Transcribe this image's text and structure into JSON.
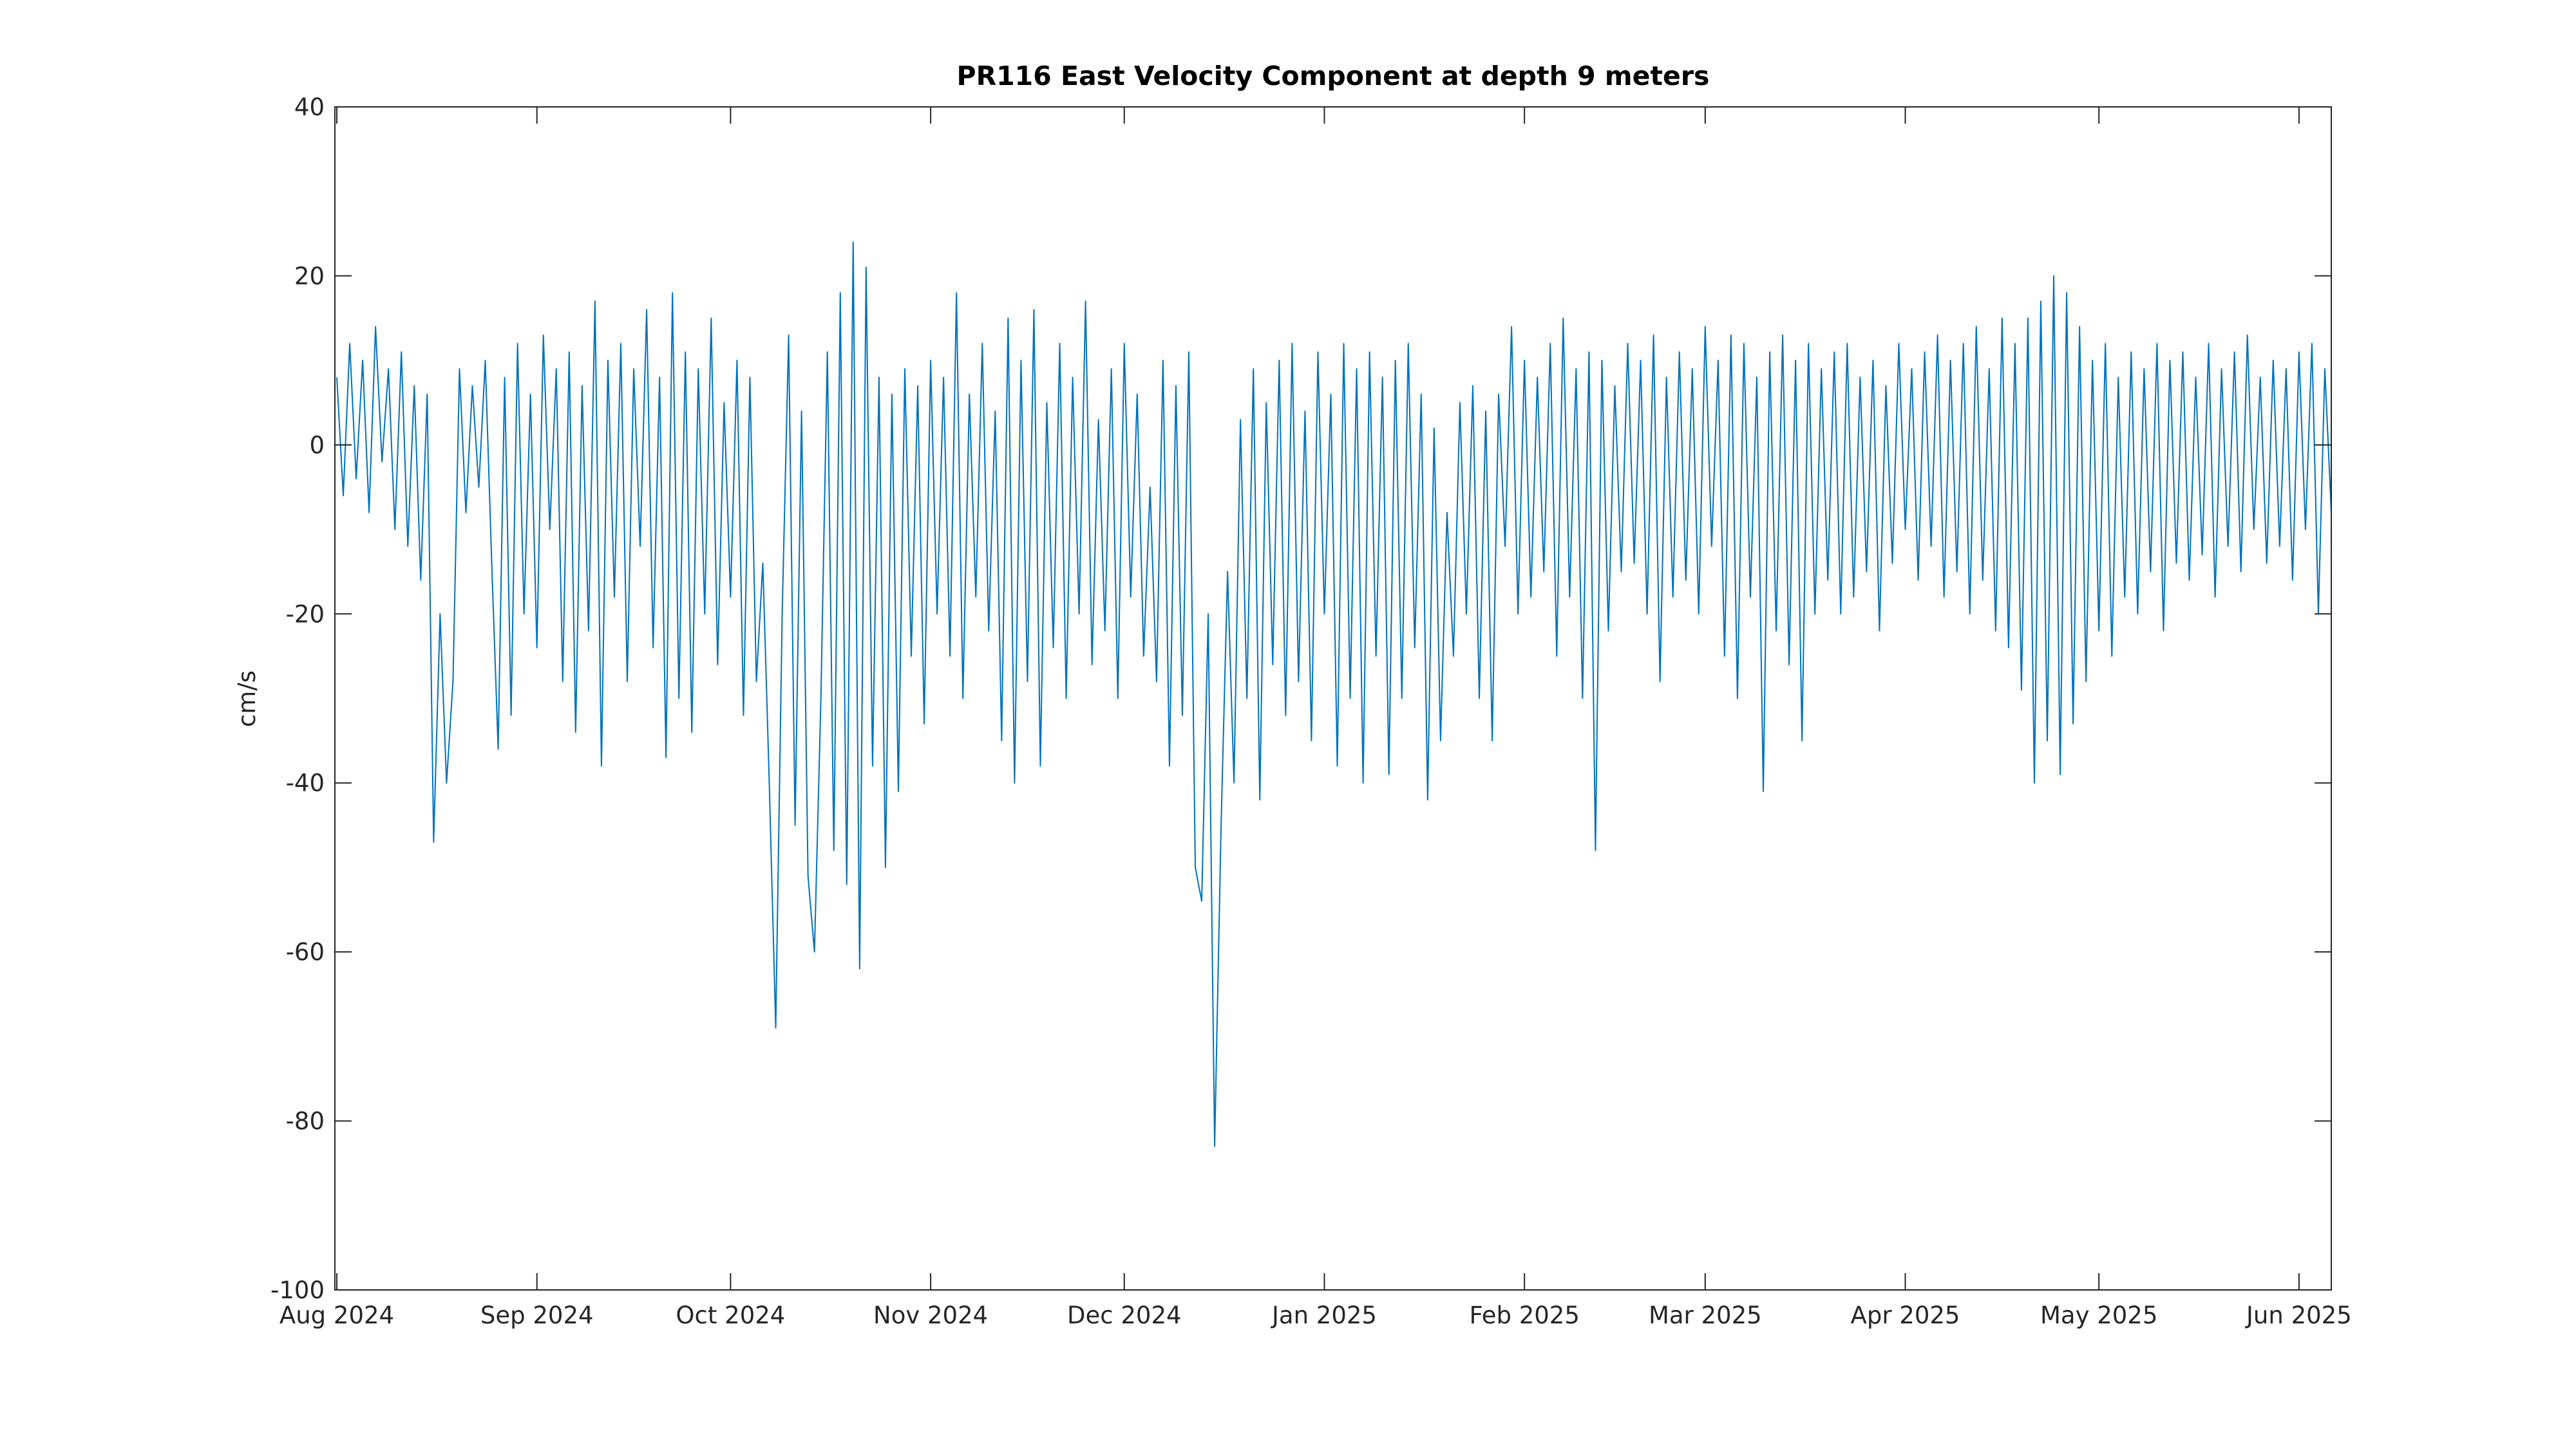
{
  "chart_data": {
    "type": "line",
    "title": "PR116 East Velocity Component at depth 9 meters",
    "y_label": "cm/s",
    "color": "#0072BD",
    "xlim": [
      -0.3,
      309
    ],
    "xticks": [
      {
        "value": 0,
        "label": "Aug 2024"
      },
      {
        "value": 31,
        "label": "Sep 2024"
      },
      {
        "value": 61,
        "label": "Oct 2024"
      },
      {
        "value": 92,
        "label": "Nov 2024"
      },
      {
        "value": 122,
        "label": "Dec 2024"
      },
      {
        "value": 153,
        "label": "Jan 2025"
      },
      {
        "value": 184,
        "label": "Feb 2025"
      },
      {
        "value": 212,
        "label": "Mar 2025"
      },
      {
        "value": 243,
        "label": "Apr 2025"
      },
      {
        "value": 273,
        "label": "May 2025"
      },
      {
        "value": 304,
        "label": "Jun 2025"
      }
    ],
    "ylim": [
      -100,
      40
    ],
    "yticks": [
      -100,
      -80,
      -60,
      -40,
      -20,
      0,
      20,
      40
    ],
    "grid": false,
    "x": [
      0,
      1,
      2,
      3,
      4,
      5,
      6,
      7,
      8,
      9,
      10,
      11,
      12,
      13,
      14,
      15,
      16,
      17,
      18,
      19,
      20,
      21,
      22,
      23,
      24,
      25,
      26,
      27,
      28,
      29,
      30,
      31,
      32,
      33,
      34,
      35,
      36,
      37,
      38,
      39,
      40,
      41,
      42,
      43,
      44,
      45,
      46,
      47,
      48,
      49,
      50,
      51,
      52,
      53,
      54,
      55,
      56,
      57,
      58,
      59,
      60,
      61,
      62,
      63,
      64,
      65,
      66,
      67,
      68,
      69,
      70,
      71,
      72,
      73,
      74,
      75,
      76,
      77,
      78,
      79,
      80,
      81,
      82,
      83,
      84,
      85,
      86,
      87,
      88,
      89,
      90,
      91,
      92,
      93,
      94,
      95,
      96,
      97,
      98,
      99,
      100,
      101,
      102,
      103,
      104,
      105,
      106,
      107,
      108,
      109,
      110,
      111,
      112,
      113,
      114,
      115,
      116,
      117,
      118,
      119,
      120,
      121,
      122,
      123,
      124,
      125,
      126,
      127,
      128,
      129,
      130,
      131,
      132,
      133,
      134,
      135,
      136,
      137,
      138,
      139,
      140,
      141,
      142,
      143,
      144,
      145,
      146,
      147,
      148,
      149,
      150,
      151,
      152,
      153,
      154,
      155,
      156,
      157,
      158,
      159,
      160,
      161,
      162,
      163,
      164,
      165,
      166,
      167,
      168,
      169,
      170,
      171,
      172,
      173,
      174,
      175,
      176,
      177,
      178,
      179,
      180,
      181,
      182,
      183,
      184,
      185,
      186,
      187,
      188,
      189,
      190,
      191,
      192,
      193,
      194,
      195,
      196,
      197,
      198,
      199,
      200,
      201,
      202,
      203,
      204,
      205,
      206,
      207,
      208,
      209,
      210,
      211,
      212,
      213,
      214,
      215,
      216,
      217,
      218,
      219,
      220,
      221,
      222,
      223,
      224,
      225,
      226,
      227,
      228,
      229,
      230,
      231,
      232,
      233,
      234,
      235,
      236,
      237,
      238,
      239,
      240,
      241,
      242,
      243,
      244,
      245,
      246,
      247,
      248,
      249,
      250,
      251,
      252,
      253,
      254,
      255,
      256,
      257,
      258,
      259,
      260,
      261,
      262,
      263,
      264,
      265,
      266,
      267,
      268,
      269,
      270,
      271,
      272,
      273,
      274,
      275,
      276,
      277,
      278,
      279,
      280,
      281,
      282,
      283,
      284,
      285,
      286,
      287,
      288,
      289,
      290,
      291,
      292,
      293,
      294,
      295,
      296,
      297,
      298,
      299,
      300,
      301,
      302,
      303,
      304,
      305,
      306,
      307,
      308,
      309
    ],
    "values": [
      8,
      -6,
      12,
      -4,
      10,
      -8,
      14,
      -2,
      9,
      -10,
      11,
      -12,
      7,
      -16,
      6,
      -47,
      -20,
      -40,
      -28,
      9,
      -8,
      7,
      -5,
      10,
      -14,
      -36,
      8,
      -32,
      12,
      -20,
      6,
      -24,
      13,
      -10,
      9,
      -28,
      11,
      -34,
      7,
      -22,
      17,
      -38,
      10,
      -18,
      12,
      -28,
      9,
      -12,
      16,
      -24,
      8,
      -37,
      18,
      -30,
      11,
      -34,
      9,
      -20,
      15,
      -26,
      5,
      -18,
      10,
      -32,
      8,
      -28,
      -14,
      -40,
      -69,
      -20,
      13,
      -45,
      4,
      -51,
      -60,
      -30,
      11,
      -48,
      18,
      -52,
      24,
      -62,
      21,
      -38,
      8,
      -50,
      6,
      -41,
      9,
      -25,
      7,
      -33,
      10,
      -20,
      8,
      -25,
      18,
      -30,
      6,
      -18,
      12,
      -22,
      4,
      -35,
      15,
      -40,
      10,
      -28,
      16,
      -38,
      5,
      -24,
      12,
      -30,
      8,
      -20,
      17,
      -26,
      3,
      -22,
      9,
      -30,
      12,
      -18,
      6,
      -25,
      -5,
      -28,
      10,
      -38,
      7,
      -32,
      11,
      -50,
      -54,
      -20,
      -83,
      -45,
      -15,
      -40,
      3,
      -30,
      9,
      -42,
      5,
      -26,
      10,
      -32,
      12,
      -28,
      4,
      -35,
      11,
      -20,
      6,
      -38,
      12,
      -30,
      9,
      -40,
      11,
      -25,
      8,
      -39,
      10,
      -30,
      12,
      -24,
      6,
      -42,
      2,
      -35,
      -8,
      -25,
      5,
      -20,
      7,
      -30,
      4,
      -35,
      6,
      -12,
      14,
      -20,
      10,
      -18,
      8,
      -15,
      12,
      -25,
      15,
      -18,
      9,
      -30,
      11,
      -48,
      10,
      -22,
      7,
      -15,
      12,
      -14,
      10,
      -20,
      13,
      -28,
      8,
      -18,
      11,
      -16,
      9,
      -20,
      14,
      -12,
      10,
      -25,
      13,
      -30,
      12,
      -18,
      8,
      -41,
      11,
      -22,
      13,
      -26,
      10,
      -35,
      12,
      -20,
      9,
      -16,
      11,
      -20,
      12,
      -18,
      8,
      -15,
      10,
      -22,
      7,
      -14,
      12,
      -10,
      9,
      -16,
      11,
      -12,
      13,
      -18,
      10,
      -15,
      12,
      -20,
      14,
      -16,
      9,
      -22,
      15,
      -24,
      12,
      -29,
      15,
      -40,
      17,
      -35,
      20,
      -39,
      18,
      -33,
      14,
      -28,
      10,
      -22,
      12,
      -25,
      8,
      -18,
      11,
      -20,
      9,
      -15,
      12,
      -22,
      10,
      -14,
      11,
      -16,
      8,
      -13,
      12,
      -18,
      9,
      -12,
      11,
      -15,
      13,
      -10,
      8,
      -14,
      10,
      -12,
      9,
      -16,
      11,
      -10,
      12,
      -20,
      9,
      -8
    ]
  }
}
